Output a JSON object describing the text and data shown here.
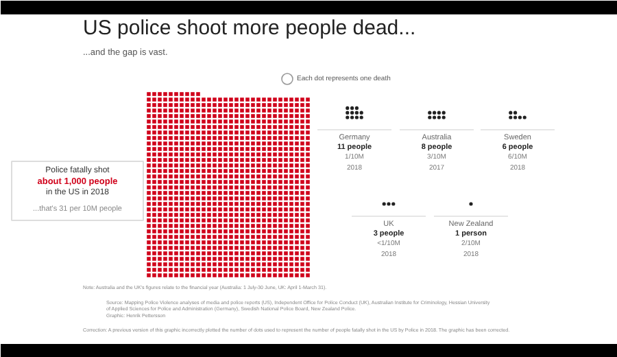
{
  "chart_data": {
    "type": "other",
    "title": "US police shoot more people dead...",
    "subtitle": "...and the gap is vast.",
    "categories": [
      null,
      "Germany",
      "Australia",
      "Sweden",
      "UK",
      "New Zealand"
    ],
    "values": [
      1000,
      11,
      8,
      6,
      3,
      1
    ],
    "colors": [
      "#d0021b",
      "#222222",
      "#222222",
      "#222222",
      "#222222",
      "#222222"
    ],
    "value_labels": [
      "about 1,000 people",
      "11 people",
      "8 people",
      "6 people",
      "3 people",
      "1 person"
    ],
    "annotations": [
      "Each dot represents one death",
      "Police fatally shot\nin the US in 2018",
      "...that's 31 per 10M people",
      {
        "text": "1/10M",
        "x": "Germany"
      },
      {
        "text": "2018",
        "x": "Germany"
      },
      {
        "text": "3/10M",
        "x": "Australia"
      },
      {
        "text": "2017",
        "x": "Australia"
      },
      {
        "text": "6/10M",
        "x": "Sweden"
      },
      {
        "text": "2018",
        "x": "Sweden"
      },
      {
        "text": "<1/10M",
        "x": "UK"
      },
      {
        "text": "2018",
        "x": "UK"
      },
      {
        "text": "2/10M",
        "x": "New Zealand"
      },
      {
        "text": "2018",
        "x": "New Zealand"
      },
      "Note: Australia and the UK's figures relate to the financial year (Australia: 1 July-30 June, UK: April 1-March 31).",
      "Source: Mapping Police Violence analyses of media and police reports (US), Independent Office for Police Conduct (UK), Australian Institute for Criminology, Hessian University of Applied Sciences for Police and Administration (Germany), Swedish National Police Board, New Zealand Police.",
      "Graphic: Henrik Pettersson",
      "Correction: A previous version of this graphic incorrectly plotted the number of dots used to represent the number of people fatally shot in the US by Police in 2018. The graphic has been corrected."
    ]
  }
}
